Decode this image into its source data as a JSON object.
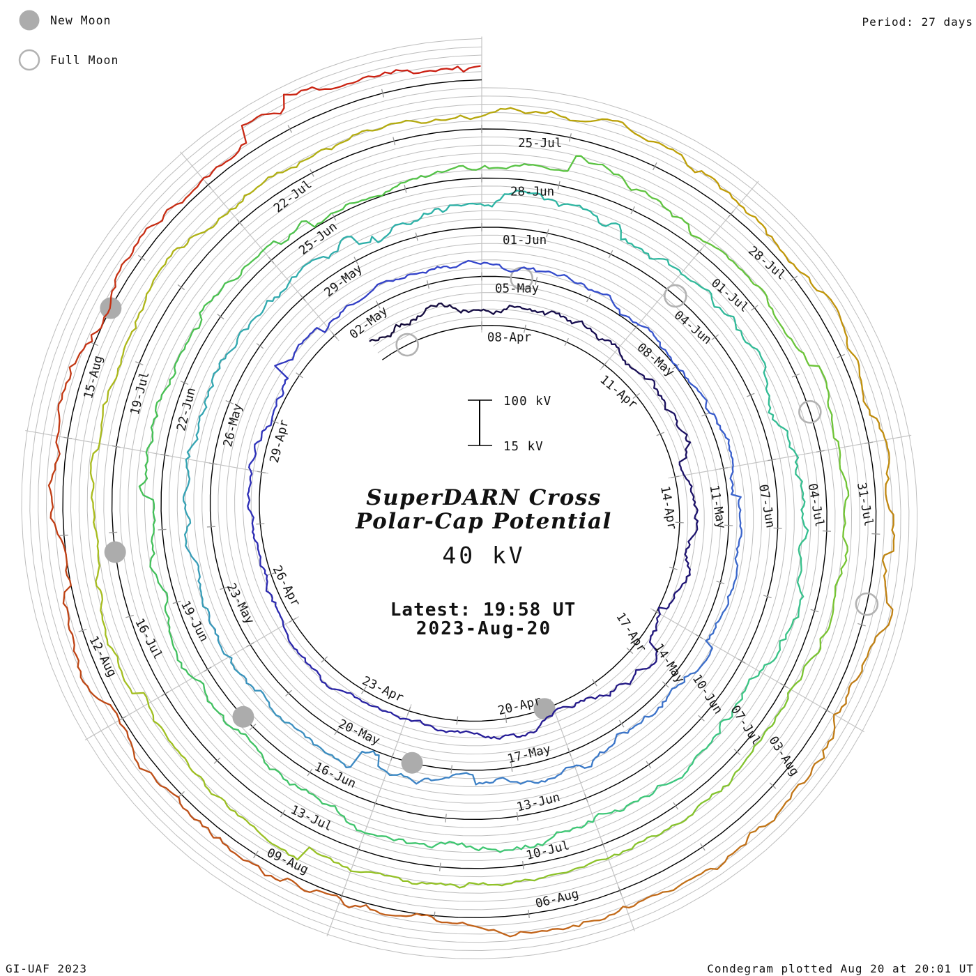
{
  "header": {
    "period_note": "Period: 27 days"
  },
  "legend": {
    "new_moon": "New Moon",
    "full_moon": "Full Moon"
  },
  "footer": {
    "credit": "GI-UAF 2023",
    "plotted_note": "Condegram plotted Aug 20 at 20:01 UT"
  },
  "center": {
    "title_line1": "SuperDARN Cross",
    "title_line2": "Polar-Cap Potential",
    "current_value": "40 kV",
    "latest_line1": "Latest: 19:58 UT",
    "latest_line2": "2023-Aug-20",
    "accent_color": "#f22b2b"
  },
  "scale_bar": {
    "top_label": "100 kV",
    "bottom_label": "15 kV"
  },
  "chart_data": {
    "type": "line",
    "variant": "condegram-spiral",
    "title": "SuperDARN Cross Polar-Cap Potential",
    "current_value_kv": 40,
    "latest_time": "19:58 UT",
    "latest_date": "2023-Aug-20",
    "plotted_note": "Condegram plotted Aug 20 at 20:01 UT",
    "period_days": 27,
    "label_interval_days": 3,
    "spiral_start_day": -2.5,
    "spiral_end_day": 135,
    "direction": "clockwise, day 0 (08-Apr) at top, 13.333 deg per day",
    "radial_axis": {
      "baseline_kv": 15,
      "scale_top_kv": 100,
      "gridline_step_kv": 15,
      "gridlines_kv": [
        30,
        45,
        60,
        75,
        90
      ]
    },
    "value_range_kv": [
      15,
      102
    ],
    "date_labels": [
      {
        "day": 0,
        "text": "08-Apr"
      },
      {
        "day": 3,
        "text": "11-Apr"
      },
      {
        "day": 6,
        "text": "14-Apr"
      },
      {
        "day": 9,
        "text": "17-Apr"
      },
      {
        "day": 12,
        "text": "20-Apr"
      },
      {
        "day": 15,
        "text": "23-Apr"
      },
      {
        "day": 18,
        "text": "26-Apr"
      },
      {
        "day": 21,
        "text": "29-Apr"
      },
      {
        "day": 24,
        "text": "02-May"
      },
      {
        "day": 27,
        "text": "05-May"
      },
      {
        "day": 30,
        "text": "08-May"
      },
      {
        "day": 33,
        "text": "11-May"
      },
      {
        "day": 36,
        "text": "14-May"
      },
      {
        "day": 39,
        "text": "17-May"
      },
      {
        "day": 42,
        "text": "20-May"
      },
      {
        "day": 45,
        "text": "23-May"
      },
      {
        "day": 48,
        "text": "26-May"
      },
      {
        "day": 51,
        "text": "29-May"
      },
      {
        "day": 54,
        "text": "01-Jun"
      },
      {
        "day": 57,
        "text": "04-Jun"
      },
      {
        "day": 60,
        "text": "07-Jun"
      },
      {
        "day": 63,
        "text": "10-Jun"
      },
      {
        "day": 66,
        "text": "13-Jun"
      },
      {
        "day": 69,
        "text": "16-Jun"
      },
      {
        "day": 72,
        "text": "19-Jun"
      },
      {
        "day": 75,
        "text": "22-Jun"
      },
      {
        "day": 78,
        "text": "25-Jun"
      },
      {
        "day": 81,
        "text": "28-Jun"
      },
      {
        "day": 84,
        "text": "01-Jul"
      },
      {
        "day": 87,
        "text": "04-Jul"
      },
      {
        "day": 90,
        "text": "07-Jul"
      },
      {
        "day": 93,
        "text": "10-Jul"
      },
      {
        "day": 96,
        "text": "13-Jul"
      },
      {
        "day": 99,
        "text": "16-Jul"
      },
      {
        "day": 102,
        "text": "19-Jul"
      },
      {
        "day": 105,
        "text": "22-Jul"
      },
      {
        "day": 108,
        "text": "25-Jul"
      },
      {
        "day": 111,
        "text": "28-Jul"
      },
      {
        "day": 114,
        "text": "31-Jul"
      },
      {
        "day": 117,
        "text": "03-Aug"
      },
      {
        "day": 120,
        "text": "06-Aug"
      },
      {
        "day": 123,
        "text": "09-Aug"
      },
      {
        "day": 126,
        "text": "12-Aug"
      },
      {
        "day": 129,
        "text": "15-Aug"
      }
    ],
    "moons": [
      {
        "phase": "full",
        "date": "Apr-06",
        "day": -1.81
      },
      {
        "phase": "new",
        "date": "Apr-20",
        "day": 12.18
      },
      {
        "phase": "full",
        "date": "May-05",
        "day": 27.73
      },
      {
        "phase": "new",
        "date": "May-19",
        "day": 41.66
      },
      {
        "phase": "full",
        "date": "Jun-04",
        "day": 57.15
      },
      {
        "phase": "new",
        "date": "Jun-18",
        "day": 71.19
      },
      {
        "phase": "full",
        "date": "Jul-03",
        "day": 86.49
      },
      {
        "phase": "new",
        "date": "Jul-17",
        "day": 100.77
      },
      {
        "phase": "full",
        "date": "Aug-01",
        "day": 115.77
      },
      {
        "phase": "new",
        "date": "Aug-16",
        "day": 130.4
      }
    ],
    "color_progression": [
      {
        "day": -2.5,
        "color": "#120935"
      },
      {
        "day": 6,
        "color": "#1c1266"
      },
      {
        "day": 13,
        "color": "#261c96"
      },
      {
        "day": 20,
        "color": "#2c2cb5"
      },
      {
        "day": 27,
        "color": "#3346cc"
      },
      {
        "day": 34,
        "color": "#3a64cc"
      },
      {
        "day": 41,
        "color": "#3d82c6"
      },
      {
        "day": 47,
        "color": "#35a0b5"
      },
      {
        "day": 54,
        "color": "#2bb3a6"
      },
      {
        "day": 60,
        "color": "#33bd92"
      },
      {
        "day": 66,
        "color": "#3fc878"
      },
      {
        "day": 73,
        "color": "#40bf5c"
      },
      {
        "day": 80,
        "color": "#52c247"
      },
      {
        "day": 87,
        "color": "#6fc436"
      },
      {
        "day": 94,
        "color": "#8ec228"
      },
      {
        "day": 101,
        "color": "#a8bd1e"
      },
      {
        "day": 107,
        "color": "#b3ab10"
      },
      {
        "day": 111,
        "color": "#c09b05"
      },
      {
        "day": 116,
        "color": "#c08114"
      },
      {
        "day": 121,
        "color": "#c2651a"
      },
      {
        "day": 127,
        "color": "#bd4414"
      },
      {
        "day": 131,
        "color": "#c62f13"
      },
      {
        "day": 135,
        "color": "#cc1d12"
      }
    ],
    "grid_colors": {
      "baseline": "#000000",
      "gridline": "#bdbdbd",
      "radial": "#c4c4c4",
      "tick": "#9a9a9a",
      "moon": "#acacac"
    }
  }
}
